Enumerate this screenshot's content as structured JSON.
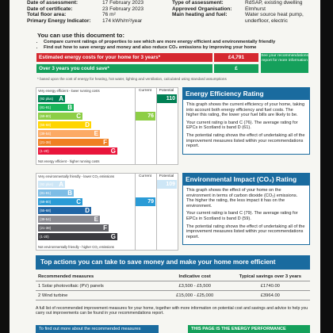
{
  "header": {
    "rows": [
      {
        "k1": "Date of assessment:",
        "v1": "17 February 2023",
        "k2": "Type of assessment:",
        "v2": "RdSAP, existing dwelling"
      },
      {
        "k1": "Date of certificate:",
        "v1": "23 February 2023",
        "k2": "Approved Organisation:",
        "v2": "Elmhurst"
      },
      {
        "k1": "Total floor area:",
        "v1": "76 m²",
        "k2": "Main heating and fuel:",
        "v2": "Water source heat pump,"
      },
      {
        "k1": "Primary Energy Indicator:",
        "v1": "174 kWh/m²/year",
        "k2": "",
        "v2": "underfloor, electric"
      }
    ]
  },
  "intro": {
    "title": "You can use this document to:",
    "bullets": [
      "Compare current ratings of properties to see which are more energy efficient and environmentally friendly",
      "Find out how to save energy and money and also reduce CO₂ emissions by improving your home"
    ]
  },
  "costs": {
    "estimated_label": "Estimated energy costs for your home for 3 years*",
    "estimated_value": "£4,791",
    "savings_label": "Over 3 years you could save*",
    "savings_value": "£",
    "see_box": "See your recommendations report for more information",
    "note": "* based upon the cost of energy for heating, hot water, lighting and ventilation, calculated using standard assumptions"
  },
  "ee_chart": {
    "top_label": "Very energy efficient - lower running costs",
    "bottom_label": "Not energy efficient - higher running costs",
    "current_header": "Current",
    "potential_header": "Potential",
    "bands": [
      {
        "range": "(92 plus)",
        "letter": "A",
        "color": "#008054"
      },
      {
        "range": "(81-91)",
        "letter": "B",
        "color": "#19b459"
      },
      {
        "range": "(69-80)",
        "letter": "C",
        "color": "#8dce46"
      },
      {
        "range": "(55-68)",
        "letter": "D",
        "color": "#ffd500"
      },
      {
        "range": "(39-54)",
        "letter": "E",
        "color": "#fcaa65"
      },
      {
        "range": "(21-38)",
        "letter": "F",
        "color": "#ef8023"
      },
      {
        "range": "(1-20)",
        "letter": "G",
        "color": "#e9153b"
      }
    ],
    "current_value": "76",
    "potential_value": "110"
  },
  "ee_panel": {
    "title": "Energy Efficiency Rating",
    "p1": "This graph shows the current efficiency of your home, taking into account both energy efficiency and fuel costs. The higher this rating, the lower your fuel bills are likely to be.",
    "p2": "Your current rating is band C (76). The average rating for EPCs in Scotland is band D (61).",
    "p3": "The potential rating shows the effect of undertaking all of the improvement measures listed within your recommendations report."
  },
  "ei_chart": {
    "top_label": "Very environmentally friendly - lower CO₂ emissions",
    "bottom_label": "Not environmentally friendly - higher CO₂ emissions",
    "current_header": "Current",
    "potential_header": "Potential",
    "bands": [
      {
        "range": "(92 plus)",
        "letter": "A",
        "color": "#cde6f6"
      },
      {
        "range": "(81-91)",
        "letter": "B",
        "color": "#7dbde6"
      },
      {
        "range": "(69-80)",
        "letter": "C",
        "color": "#2a9bd6"
      },
      {
        "range": "(55-68)",
        "letter": "D",
        "color": "#2166a6"
      },
      {
        "range": "(39-54)",
        "letter": "E",
        "color": "#8b8b92"
      },
      {
        "range": "(21-38)",
        "letter": "F",
        "color": "#636368"
      },
      {
        "range": "(1-20)",
        "letter": "G",
        "color": "#3a3a3f"
      }
    ],
    "current_value": "79",
    "potential_value": "109"
  },
  "ei_panel": {
    "title": "Environmental Impact (CO₂) Rating",
    "p1": "This graph shows the effect of your home on the environment in terms of carbon dioxide (CO₂) emissions. The higher the rating, the less impact it has on the environment.",
    "p2": "Your current rating is band C (79). The average rating for EPCs in Scotland is band D (59).",
    "p3": "The potential rating shows the effect of undertaking all of the improvement measures listed within your recommendations report."
  },
  "actions": {
    "title": "Top actions you can take to save money and make your home more efficient",
    "headers": [
      "Recommended measures",
      "Indicative cost",
      "Typical savings over 3 years"
    ],
    "rows": [
      [
        "1 Solar photovoltaic (PV) panels",
        "£3,500 - £5,500",
        "£1740.00"
      ],
      [
        "2 Wind turbine",
        "£15,000 - £25,000",
        "£3964.00"
      ]
    ],
    "footnote": "A full list of recommended improvement measures for your home, together with more information on potential cost and savings and advice to help you carry out improvements can be found in your recommendations report.",
    "left_button": "To find out more about the recommended measures",
    "right_button": "THIS PAGE IS THE ENERGY PERFORMANCE"
  }
}
